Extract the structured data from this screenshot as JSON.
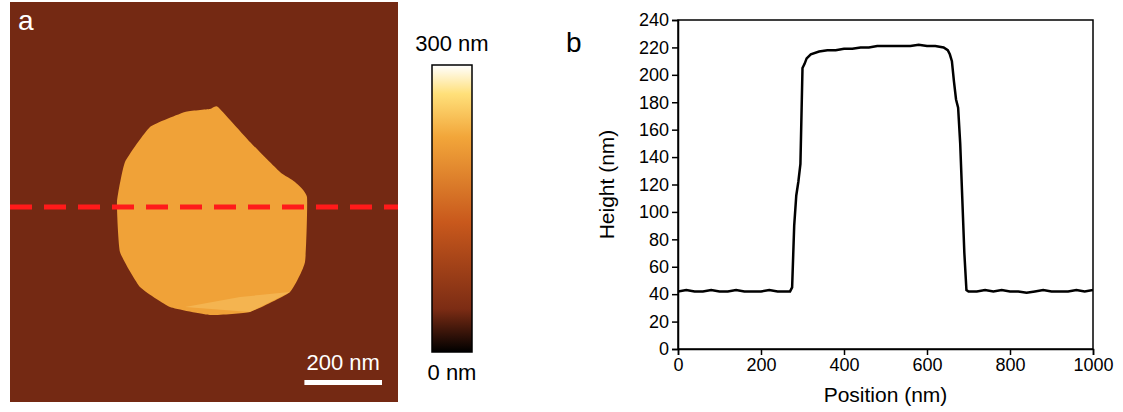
{
  "chart_data": [
    {
      "type": "image",
      "panel": "a",
      "colorbar": {
        "range": [
          0,
          300
        ],
        "ticks": [
          {
            "value": 300,
            "label": "300 nm"
          },
          {
            "value": 0,
            "label": "0 nm"
          }
        ]
      },
      "scale_bar": {
        "value": 200,
        "label": "200 nm"
      },
      "background_height": 42,
      "particle_height": 220
    },
    {
      "type": "line",
      "panel": "b",
      "x": [
        0,
        20,
        40,
        60,
        80,
        100,
        120,
        140,
        160,
        180,
        200,
        220,
        240,
        260,
        270,
        275,
        280,
        285,
        290,
        295,
        300,
        305,
        310,
        320,
        340,
        360,
        380,
        400,
        420,
        440,
        460,
        480,
        500,
        520,
        540,
        560,
        580,
        600,
        620,
        640,
        650,
        655,
        660,
        665,
        670,
        675,
        680,
        685,
        690,
        695,
        700,
        720,
        740,
        760,
        780,
        800,
        820,
        840,
        860,
        880,
        900,
        920,
        940,
        960,
        980,
        1000
      ],
      "series": [
        {
          "color": "#000000",
          "values": [
            42,
            43,
            42,
            42,
            43,
            42,
            42,
            43,
            42,
            42,
            42,
            43,
            42,
            42,
            42,
            45,
            90,
            112,
            122,
            135,
            205,
            208,
            212,
            215,
            217,
            218,
            218,
            219,
            219,
            220,
            220,
            221,
            221,
            221,
            221,
            221,
            222,
            221,
            221,
            220,
            218,
            215,
            210,
            195,
            182,
            176,
            150,
            110,
            70,
            43,
            42,
            42,
            43,
            42,
            43,
            42,
            42,
            41,
            42,
            43,
            42,
            42,
            42,
            43,
            42,
            43
          ]
        }
      ],
      "xlabel": "Position (nm)",
      "ylabel": "Height (nm)",
      "xlim": [
        0,
        1000
      ],
      "ylim": [
        0,
        240
      ],
      "xticks": [
        0,
        200,
        400,
        600,
        800,
        1000
      ],
      "yticks": [
        0,
        20,
        40,
        60,
        80,
        100,
        120,
        140,
        160,
        180,
        200,
        220,
        240
      ]
    }
  ]
}
